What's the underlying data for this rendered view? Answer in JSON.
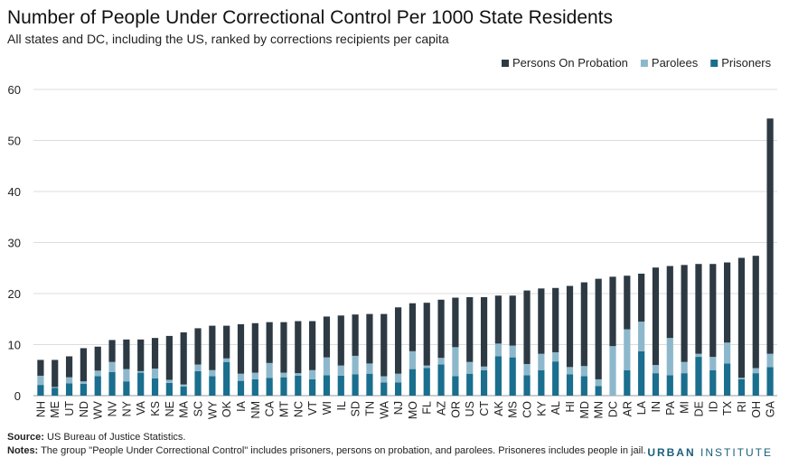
{
  "chart_data": {
    "type": "bar",
    "stacked": true,
    "title": "Number of People Under Correctional Control Per 1000 State Residents",
    "subtitle": "All states and DC, including the US, ranked by corrections recipients per capita",
    "xlabel": "",
    "ylabel": "",
    "ylim": [
      0,
      60
    ],
    "yticks": [
      0,
      10,
      20,
      30,
      40,
      50,
      60
    ],
    "grid": true,
    "legend_position": "top-right",
    "legend_order": [
      "Persons On Probation",
      "Parolees",
      "Prisoners"
    ],
    "categories": [
      "NH",
      "ME",
      "UT",
      "ND",
      "WV",
      "NV",
      "NY",
      "VA",
      "KS",
      "NE",
      "MA",
      "SC",
      "WY",
      "OK",
      "IA",
      "NM",
      "CA",
      "MT",
      "NC",
      "VT",
      "WI",
      "IL",
      "SD",
      "TN",
      "WA",
      "NJ",
      "MO",
      "FL",
      "AZ",
      "OR",
      "US",
      "CT",
      "AK",
      "MS",
      "CO",
      "KY",
      "AL",
      "HI",
      "MD",
      "MN",
      "DC",
      "AR",
      "LA",
      "IN",
      "PA",
      "MI",
      "DE",
      "ID",
      "TX",
      "RI",
      "OH",
      "GA"
    ],
    "series": [
      {
        "name": "Prisoners",
        "color": "#1a6e8e",
        "values": [
          2.1,
          1.5,
          2.4,
          2.3,
          3.8,
          4.6,
          2.8,
          4.5,
          3.4,
          2.5,
          1.8,
          4.8,
          3.8,
          6.6,
          2.9,
          3.2,
          3.5,
          3.6,
          3.9,
          3.2,
          4.0,
          3.9,
          4.2,
          4.3,
          2.6,
          2.6,
          5.2,
          5.4,
          6.1,
          3.8,
          4.3,
          5.0,
          7.7,
          7.5,
          4.0,
          5.0,
          6.7,
          4.2,
          3.8,
          1.9,
          0.0,
          5.0,
          8.7,
          4.4,
          4.0,
          4.4,
          7.6,
          5.0,
          6.3,
          3.2,
          4.4,
          5.6
        ]
      },
      {
        "name": "Parolees",
        "color": "#8db8cc",
        "values": [
          1.8,
          0.2,
          1.2,
          0.5,
          1.1,
          2.0,
          2.4,
          0.3,
          1.9,
          0.6,
          0.4,
          1.3,
          1.2,
          0.7,
          1.4,
          1.3,
          2.9,
          0.9,
          0.5,
          1.8,
          3.5,
          2.0,
          3.6,
          2.0,
          1.2,
          1.7,
          3.5,
          0.5,
          1.3,
          5.7,
          2.3,
          0.7,
          2.5,
          2.3,
          2.2,
          3.2,
          1.8,
          1.4,
          2.0,
          1.3,
          9.7,
          8.0,
          5.8,
          1.6,
          7.3,
          2.2,
          0.6,
          2.6,
          4.1,
          0.3,
          1.0,
          2.6
        ]
      },
      {
        "name": "Persons On Probation",
        "color": "#2d3a43",
        "values": [
          3.1,
          5.3,
          4.1,
          6.5,
          4.7,
          4.3,
          5.8,
          6.2,
          6.0,
          8.6,
          10.2,
          7.1,
          8.7,
          6.4,
          9.7,
          9.7,
          8.0,
          9.9,
          10.2,
          9.6,
          8.0,
          9.8,
          8.1,
          9.7,
          12.2,
          13.0,
          9.4,
          12.3,
          11.4,
          9.7,
          12.7,
          13.6,
          9.4,
          9.8,
          14.4,
          12.8,
          12.6,
          15.9,
          16.4,
          19.7,
          13.6,
          10.5,
          9.4,
          19.1,
          14.1,
          19.0,
          17.6,
          18.2,
          15.7,
          23.5,
          22.0,
          46.1
        ]
      }
    ]
  },
  "footer": {
    "source_label": "Source:",
    "source_text": " US Bureau of Justice Statistics.",
    "notes_label": "Notes:",
    "notes_text": " The group \"People Under Correctional Control\" includes prisoners, persons on probation, and parolees. Prisoneres includes people in jail."
  },
  "brand": {
    "part1": "URBAN",
    "part2": " INSTITUTE"
  }
}
